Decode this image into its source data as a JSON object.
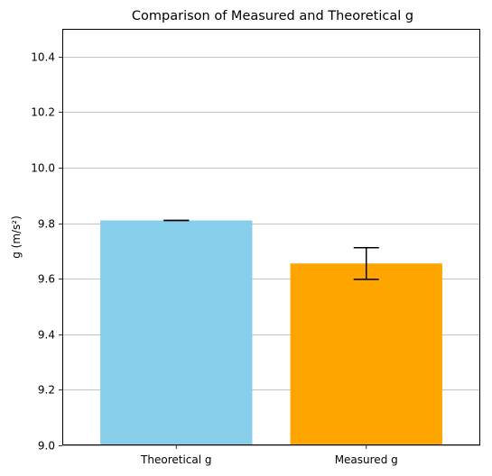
{
  "chart_data": {
    "type": "bar",
    "title": "Comparison of Measured and Theoretical g",
    "xlabel": "",
    "ylabel": "g (m/s²)",
    "categories": [
      "Theoretical g",
      "Measured g"
    ],
    "values": [
      9.81,
      9.655
    ],
    "errors": [
      0.0,
      0.057
    ],
    "colors": [
      "#87CEEB",
      "#FFA500"
    ],
    "ylim": [
      9.0,
      10.5
    ],
    "yticks": [
      9.0,
      9.2,
      9.4,
      9.6,
      9.8,
      10.0,
      10.2,
      10.4
    ],
    "ytick_labels": [
      "9.0",
      "9.2",
      "9.4",
      "9.6",
      "9.8",
      "10.0",
      "10.2",
      "10.4"
    ],
    "grid": "y-axis",
    "legend": "none"
  }
}
